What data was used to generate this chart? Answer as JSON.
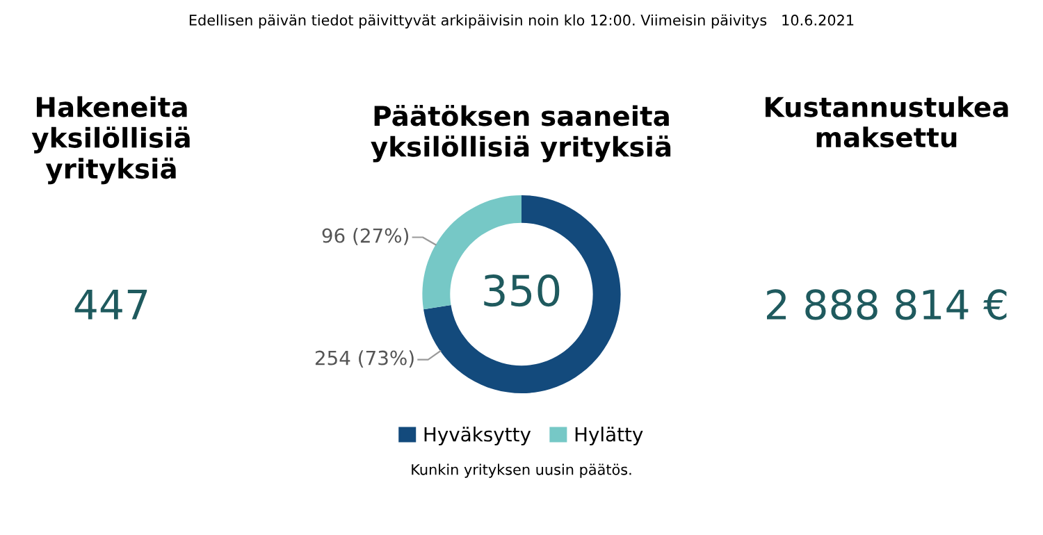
{
  "chart_data": [
    {
      "type": "other",
      "title": "Hakeneita\nyksilöllisiä\nyrityksiä",
      "annotations": [
        "447"
      ],
      "color": "#1f5a5e"
    },
    {
      "type": "donut",
      "title": "Päätöksen saaneita\nyksilöllisiä yrityksiä",
      "categories": [
        "Hyväksytty",
        "Hylätty"
      ],
      "values": [
        254,
        96
      ],
      "colors": [
        "#134a7c",
        "#76c8c6"
      ],
      "value_labels": [
        "254 (73%)",
        "96 (27%)"
      ],
      "legend": "bottom",
      "annotations": [
        "350",
        "Kunkin yrityksen uusin päätös.",
        "Edellisen päivän tiedot päivittyvät arkipäivisin noin klo 12:00. Viimeisin päivitys   10.6.2021"
      ]
    },
    {
      "type": "other",
      "title": "Kustannustukea\nmaksettu",
      "annotations": [
        "2 888 814 €"
      ],
      "color": "#1f5a5e"
    }
  ]
}
